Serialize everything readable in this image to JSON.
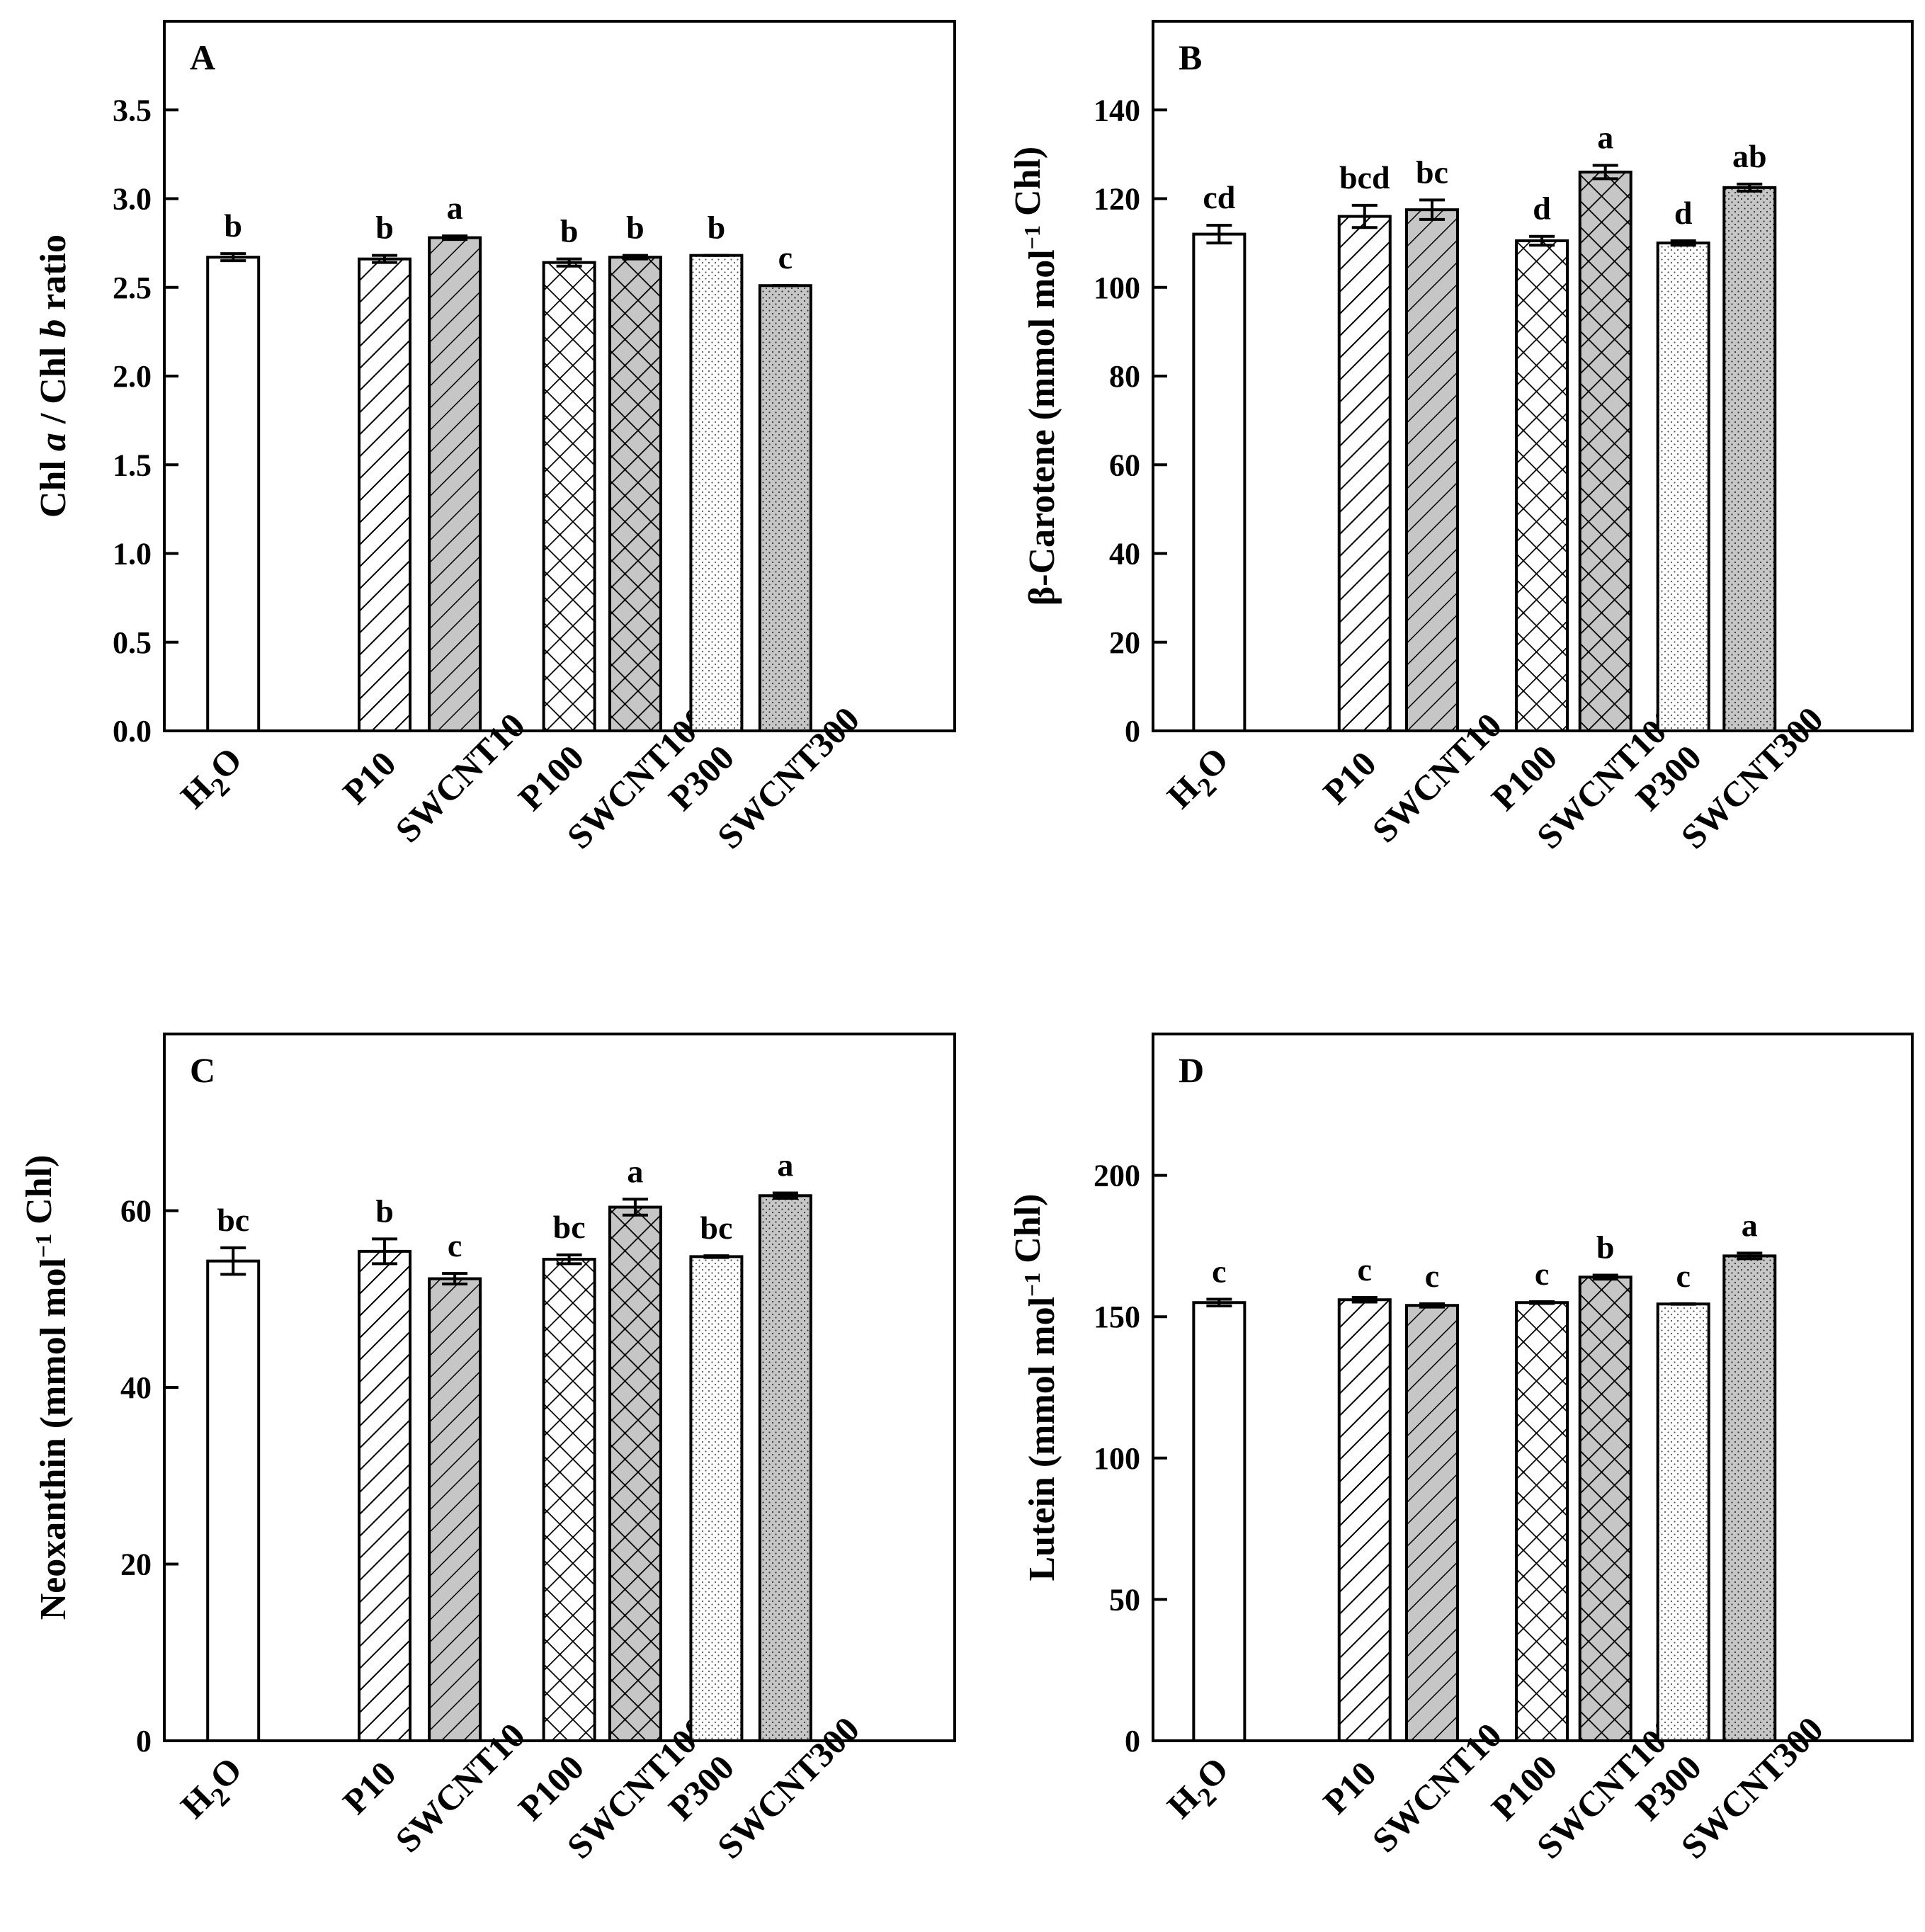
{
  "chart_data": [
    {
      "type": "bar",
      "panel_label": "A",
      "ylabel_parts": [
        {
          "text": "Chl ",
          "italic": false
        },
        {
          "text": "a",
          "italic": true
        },
        {
          "text": " / Chl ",
          "italic": false
        },
        {
          "text": "b",
          "italic": true
        },
        {
          "text": " ratio",
          "italic": false
        }
      ],
      "ylim": [
        0,
        4.0
      ],
      "yticks": [
        "0.0",
        "0.5",
        "1.0",
        "1.5",
        "2.0",
        "2.5",
        "3.0",
        "3.5"
      ],
      "ytick_values": [
        0,
        0.5,
        1.0,
        1.5,
        2.0,
        2.5,
        3.0,
        3.5
      ],
      "categories": [
        "H2O",
        "P10",
        "SWCNT10",
        "P100",
        "SWCNT100",
        "P300",
        "SWCNT300"
      ],
      "patterns": [
        "plain",
        "diag",
        "diag-grey",
        "cross",
        "cross-grey",
        "dots",
        "dots-grey"
      ],
      "values": [
        2.67,
        2.66,
        2.78,
        2.64,
        2.67,
        2.68,
        2.51
      ],
      "errors": [
        0.02,
        0.02,
        0.01,
        0.02,
        0.01,
        0.0,
        0.0
      ],
      "letters": [
        "b",
        "b",
        "a",
        "b",
        "b",
        "b",
        "c"
      ]
    },
    {
      "type": "bar",
      "panel_label": "B",
      "ylabel_parts": [
        {
          "text": "β-Carotene (mmol mol",
          "italic": false
        },
        {
          "text": "−1",
          "sup": true
        },
        {
          "text": " Chl)",
          "italic": false
        }
      ],
      "ylim": [
        0,
        160
      ],
      "yticks": [
        "0",
        "20",
        "40",
        "60",
        "80",
        "100",
        "120",
        "140"
      ],
      "ytick_values": [
        0,
        20,
        40,
        60,
        80,
        100,
        120,
        140
      ],
      "categories": [
        "H2O",
        "P10",
        "SWCNT10",
        "P100",
        "SWCNT100",
        "P300",
        "SWCNT300"
      ],
      "patterns": [
        "plain",
        "diag",
        "diag-grey",
        "cross",
        "cross-grey",
        "dots",
        "dots-grey"
      ],
      "values": [
        112,
        116,
        117.5,
        110.5,
        126,
        110,
        122.5
      ],
      "errors": [
        2,
        2.5,
        2.2,
        1,
        1.5,
        0.5,
        0.8
      ],
      "letters": [
        "cd",
        "bcd",
        "bc",
        "d",
        "a",
        "d",
        "ab"
      ]
    },
    {
      "type": "bar",
      "panel_label": "C",
      "ylabel_parts": [
        {
          "text": "Neoxanthin (mmol mol",
          "italic": false
        },
        {
          "text": "−1",
          "sup": true
        },
        {
          "text": " Chl)",
          "italic": false
        }
      ],
      "ylim": [
        0,
        80
      ],
      "yticks": [
        "0",
        "20",
        "40",
        "60"
      ],
      "ytick_values": [
        0,
        20,
        40,
        60
      ],
      "categories": [
        "H2O",
        "P10",
        "SWCNT10",
        "P100",
        "SWCNT100",
        "P300",
        "SWCNT300"
      ],
      "patterns": [
        "plain",
        "diag",
        "diag-grey",
        "cross",
        "cross-grey",
        "dots",
        "dots-grey"
      ],
      "values": [
        54.3,
        55.4,
        52.3,
        54.5,
        60.4,
        54.8,
        61.7
      ],
      "errors": [
        1.5,
        1.4,
        0.6,
        0.5,
        0.9,
        0.1,
        0.3
      ],
      "letters": [
        "bc",
        "b",
        "c",
        "bc",
        "a",
        "bc",
        "a"
      ]
    },
    {
      "type": "bar",
      "panel_label": "D",
      "ylabel_parts": [
        {
          "text": "Lutein (mmol mol",
          "italic": false
        },
        {
          "text": "−1",
          "sup": true
        },
        {
          "text": " Chl)",
          "italic": false
        }
      ],
      "ylim": [
        0,
        250
      ],
      "yticks": [
        "0",
        "50",
        "100",
        "150",
        "200"
      ],
      "ytick_values": [
        0,
        50,
        100,
        150,
        200
      ],
      "categories": [
        "H2O",
        "P10",
        "SWCNT10",
        "P100",
        "SWCNT100",
        "P300",
        "SWCNT300"
      ],
      "patterns": [
        "plain",
        "diag",
        "diag-grey",
        "cross",
        "cross-grey",
        "dots",
        "dots-grey"
      ],
      "values": [
        155,
        156,
        154,
        155,
        164,
        154.5,
        171.5
      ],
      "errors": [
        1.2,
        0.8,
        0.6,
        0.3,
        0.7,
        0.1,
        1.0
      ],
      "letters": [
        "c",
        "c",
        "c",
        "c",
        "b",
        "c",
        "a"
      ]
    }
  ],
  "colors": {
    "grey_fill": "#c6c6c6",
    "stroke": "#000000",
    "background": "#ffffff"
  }
}
